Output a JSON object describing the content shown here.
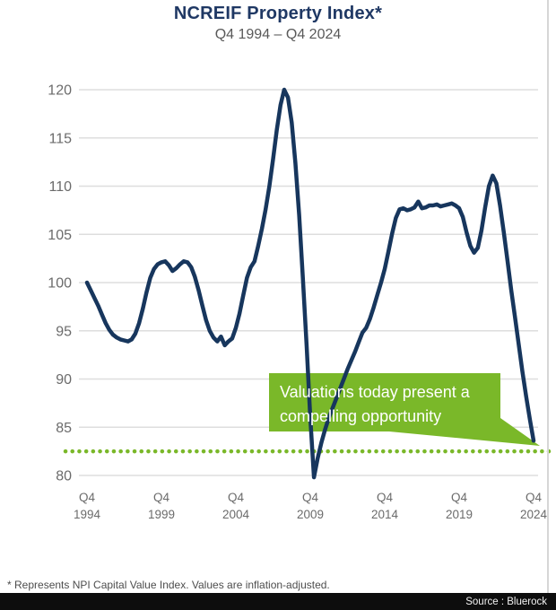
{
  "header": {
    "title": "NCREIF Property Index*",
    "subtitle": "Q4 1994 – Q4 2024"
  },
  "chart_data": {
    "type": "line",
    "title": "NCREIF Property Index*",
    "subtitle": "Q4 1994 – Q4 2024",
    "frequency": "quarterly",
    "x_start": "Q4 1994",
    "x_end": "Q4 2024",
    "ylim": [
      80,
      120
    ],
    "grid": true,
    "yticks": [
      120,
      115,
      110,
      105,
      100,
      95,
      90,
      85,
      80
    ],
    "xticks": [
      {
        "line1": "Q4",
        "line2": "1994",
        "index": 0
      },
      {
        "line1": "Q4",
        "line2": "1999",
        "index": 20
      },
      {
        "line1": "Q4",
        "line2": "2004",
        "index": 40
      },
      {
        "line1": "Q4",
        "line2": "2009",
        "index": 60
      },
      {
        "line1": "Q4",
        "line2": "2014",
        "index": 80
      },
      {
        "line1": "Q4",
        "line2": "2019",
        "index": 100
      },
      {
        "line1": "Q4",
        "line2": "2024",
        "index": 120
      }
    ],
    "series": [
      {
        "name": "NPI Capital Value Index (inflation-adjusted)",
        "color": "#17365d",
        "values": [
          100.0,
          99.2,
          98.4,
          97.6,
          96.7,
          95.8,
          95.1,
          94.6,
          94.3,
          94.1,
          94.0,
          93.9,
          94.1,
          94.7,
          95.8,
          97.3,
          99.0,
          100.5,
          101.4,
          101.9,
          102.1,
          102.2,
          101.8,
          101.2,
          101.5,
          101.9,
          102.2,
          102.1,
          101.6,
          100.6,
          99.2,
          97.6,
          96.1,
          95.0,
          94.3,
          93.9,
          94.4,
          93.5,
          93.9,
          94.2,
          95.3,
          96.8,
          98.7,
          100.5,
          101.6,
          102.2,
          103.8,
          105.6,
          107.6,
          110.0,
          112.8,
          115.8,
          118.4,
          120.0,
          119.2,
          116.6,
          112.4,
          107.0,
          100.5,
          93.5,
          86.0,
          79.8,
          81.8,
          83.4,
          84.8,
          86.0,
          87.0,
          88.0,
          89.0,
          90.0,
          91.0,
          91.9,
          92.8,
          93.8,
          94.8,
          95.3,
          96.2,
          97.4,
          98.7,
          100.0,
          101.4,
          103.2,
          105.1,
          106.7,
          107.6,
          107.7,
          107.5,
          107.6,
          107.8,
          108.4,
          107.7,
          107.8,
          108.0,
          108.0,
          108.1,
          107.9,
          108.0,
          108.1,
          108.2,
          108.0,
          107.7,
          106.8,
          105.2,
          103.8,
          103.1,
          103.6,
          105.4,
          107.8,
          110.0,
          111.1,
          110.3,
          108.0,
          105.2,
          102.2,
          99.2,
          96.4,
          93.6,
          90.8,
          88.2,
          85.8,
          83.6
        ]
      }
    ],
    "reference_line": {
      "value": 82.5,
      "style": "dotted",
      "color": "#7ab829"
    },
    "annotation": {
      "line1": "Valuations today present a",
      "line2": "compelling opportunity",
      "bg_color": "#7ab829",
      "text_color": "#ffffff"
    },
    "colors": {
      "line": "#17365d",
      "grid": "#dedede",
      "axis_text": "#6b6b6b",
      "green": "#7ab829"
    }
  },
  "footnote": "* Represents NPI Capital Value Index. Values are inflation-adjusted.",
  "source_bar": {
    "text": "Source : Bluerock"
  }
}
